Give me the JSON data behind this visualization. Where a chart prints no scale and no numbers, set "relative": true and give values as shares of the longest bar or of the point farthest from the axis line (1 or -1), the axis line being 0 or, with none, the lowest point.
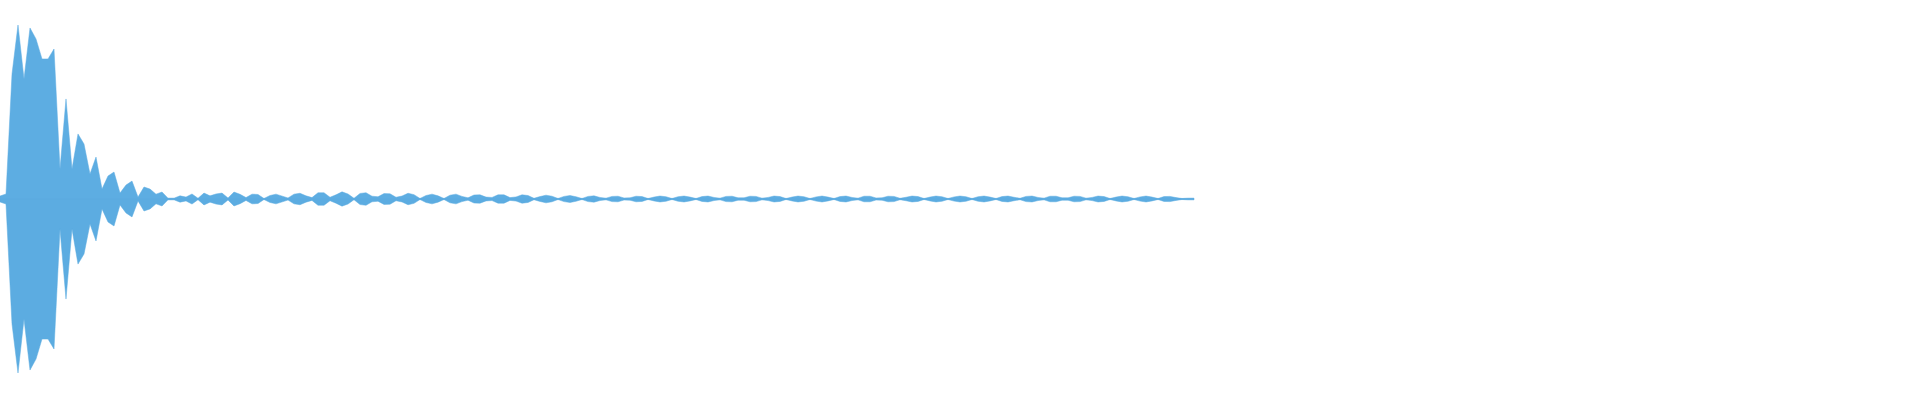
{
  "chart_data": {
    "type": "area",
    "relative": true,
    "categories": [
      null,
      null,
      null,
      null,
      null,
      null,
      null,
      null,
      null,
      null,
      null,
      null,
      null,
      null,
      null,
      null,
      null,
      null,
      null,
      null,
      null,
      null,
      null,
      null,
      null,
      null,
      null,
      null,
      null,
      null,
      null,
      null,
      null,
      null,
      null,
      null,
      null,
      null,
      null,
      null,
      null,
      null,
      null,
      null,
      null,
      null,
      null,
      null,
      null,
      null,
      null,
      null,
      null,
      null,
      null,
      null,
      null,
      null,
      null,
      null,
      null,
      null,
      null,
      null,
      null,
      null,
      null,
      null,
      null,
      null,
      null,
      null,
      null,
      null,
      null,
      null,
      null,
      null,
      null,
      null,
      null,
      null,
      null,
      null,
      null,
      null,
      null,
      null,
      null,
      null,
      null,
      null,
      null,
      null,
      null,
      null,
      null,
      null,
      null,
      null,
      null,
      null,
      null,
      null,
      null,
      null,
      null,
      null,
      null,
      null,
      null,
      null,
      null,
      null,
      null,
      null,
      null,
      null,
      null,
      null,
      null,
      null,
      null,
      null,
      null,
      null,
      null,
      null,
      null,
      null,
      null,
      null,
      null,
      null,
      null,
      null,
      null,
      null,
      null,
      null,
      null,
      null,
      null,
      null,
      null,
      null,
      null,
      null,
      null,
      null,
      null,
      null,
      null,
      null,
      null,
      null,
      null,
      null,
      null,
      null,
      null,
      null,
      null,
      null,
      null,
      null,
      null,
      null,
      null,
      null,
      null,
      null,
      null,
      null,
      null,
      null,
      null,
      null,
      null,
      null,
      null,
      null,
      null,
      null,
      null,
      null,
      null,
      null,
      null,
      null,
      null,
      null,
      null,
      null,
      null,
      null,
      null,
      null,
      null,
      null
    ],
    "series": [
      {
        "color": "#5dade2",
        "values": [
          0.017,
          0.029,
          0.718,
          1,
          0.69,
          0.983,
          0.92,
          0.805,
          0.805,
          0.862,
          0.172,
          0.575,
          0.172,
          0.374,
          0.316,
          0.144,
          0.241,
          0.057,
          0.132,
          0.155,
          0.034,
          0.08,
          0.103,
          0.011,
          0.069,
          0.057,
          0.028,
          0.04,
          0.005,
          0.005,
          0.018,
          0.011,
          0.029,
          0.004,
          0.034,
          0.018,
          0.029,
          0.034,
          0.006,
          0.04,
          0.027,
          0.008,
          0.028,
          0.026,
          0.003,
          0.02,
          0.028,
          0.017,
          0.006,
          0.028,
          0.033,
          0.018,
          0.008,
          0.036,
          0.036,
          0.01,
          0.024,
          0.041,
          0.029,
          0.004,
          0.032,
          0.036,
          0.016,
          0.013,
          0.031,
          0.03,
          0.01,
          0.017,
          0.033,
          0.025,
          0.003,
          0.02,
          0.028,
          0.018,
          0.003,
          0.022,
          0.028,
          0.015,
          0.007,
          0.023,
          0.024,
          0.011,
          0.009,
          0.024,
          0.024,
          0.008,
          0.012,
          0.024,
          0.02,
          0.004,
          0.014,
          0.022,
          0.016,
          0.003,
          0.015,
          0.02,
          0.013,
          0.003,
          0.015,
          0.018,
          0.009,
          0.005,
          0.015,
          0.016,
          0.006,
          0.007,
          0.016,
          0.014,
          0.003,
          0.011,
          0.017,
          0.013,
          0.003,
          0.013,
          0.017,
          0.011,
          0.003,
          0.014,
          0.017,
          0.009,
          0.005,
          0.015,
          0.016,
          0.007,
          0.007,
          0.016,
          0.015,
          0.005,
          0.009,
          0.017,
          0.014,
          0.003,
          0.011,
          0.017,
          0.013,
          0.003,
          0.012,
          0.017,
          0.011,
          0.003,
          0.014,
          0.017,
          0.009,
          0.005,
          0.016,
          0.016,
          0.006,
          0.007,
          0.016,
          0.015,
          0.004,
          0.01,
          0.017,
          0.014,
          0.003,
          0.011,
          0.017,
          0.013,
          0.003,
          0.012,
          0.017,
          0.013,
          0.003,
          0.013,
          0.017,
          0.011,
          0.003,
          0.014,
          0.017,
          0.01,
          0.004,
          0.015,
          0.017,
          0.009,
          0.005,
          0.016,
          0.016,
          0.007,
          0.007,
          0.016,
          0.015,
          0.005,
          0.009,
          0.017,
          0.014,
          0.003,
          0.011,
          0.017,
          0.013,
          0.003,
          0.012,
          0.017,
          0.011,
          0.003,
          0.014,
          0.015,
          0.008,
          0.003,
          0.005,
          0.005
        ]
      },
      {
        "color": "#5cace1",
        "values": [
          -0.017,
          -0.029,
          -0.718,
          -1,
          -0.69,
          -0.983,
          -0.92,
          -0.805,
          -0.805,
          -0.862,
          -0.172,
          -0.575,
          -0.172,
          -0.374,
          -0.316,
          -0.144,
          -0.241,
          -0.057,
          -0.132,
          -0.155,
          -0.034,
          -0.08,
          -0.103,
          -0.011,
          -0.069,
          -0.057,
          -0.028,
          -0.04,
          -0.005,
          -0.005,
          -0.018,
          -0.011,
          -0.029,
          -0.004,
          -0.034,
          -0.018,
          -0.029,
          -0.034,
          -0.006,
          -0.04,
          -0.027,
          -0.008,
          -0.028,
          -0.026,
          -0.003,
          -0.02,
          -0.028,
          -0.017,
          -0.006,
          -0.028,
          -0.033,
          -0.018,
          -0.008,
          -0.036,
          -0.036,
          -0.01,
          -0.024,
          -0.041,
          -0.029,
          -0.004,
          -0.032,
          -0.036,
          -0.016,
          -0.013,
          -0.031,
          -0.03,
          -0.01,
          -0.017,
          -0.033,
          -0.025,
          -0.003,
          -0.02,
          -0.028,
          -0.018,
          -0.003,
          -0.022,
          -0.028,
          -0.015,
          -0.007,
          -0.023,
          -0.024,
          -0.011,
          -0.009,
          -0.024,
          -0.024,
          -0.008,
          -0.012,
          -0.024,
          -0.02,
          -0.004,
          -0.014,
          -0.022,
          -0.016,
          -0.003,
          -0.015,
          -0.02,
          -0.013,
          -0.003,
          -0.015,
          -0.018,
          -0.009,
          -0.005,
          -0.015,
          -0.016,
          -0.006,
          -0.007,
          -0.016,
          -0.014,
          -0.003,
          -0.011,
          -0.017,
          -0.013,
          -0.003,
          -0.013,
          -0.017,
          -0.011,
          -0.003,
          -0.014,
          -0.017,
          -0.009,
          -0.005,
          -0.015,
          -0.016,
          -0.007,
          -0.007,
          -0.016,
          -0.015,
          -0.005,
          -0.009,
          -0.017,
          -0.014,
          -0.003,
          -0.011,
          -0.017,
          -0.013,
          -0.003,
          -0.012,
          -0.017,
          -0.011,
          -0.003,
          -0.014,
          -0.017,
          -0.009,
          -0.005,
          -0.016,
          -0.016,
          -0.006,
          -0.007,
          -0.016,
          -0.015,
          -0.004,
          -0.01,
          -0.017,
          -0.014,
          -0.003,
          -0.011,
          -0.017,
          -0.013,
          -0.003,
          -0.012,
          -0.017,
          -0.013,
          -0.003,
          -0.013,
          -0.017,
          -0.011,
          -0.003,
          -0.014,
          -0.017,
          -0.01,
          -0.004,
          -0.015,
          -0.017,
          -0.009,
          -0.005,
          -0.016,
          -0.016,
          -0.007,
          -0.007,
          -0.016,
          -0.015,
          -0.005,
          -0.009,
          -0.017,
          -0.014,
          -0.003,
          -0.011,
          -0.017,
          -0.013,
          -0.003,
          -0.012,
          -0.017,
          -0.011,
          -0.003,
          -0.014,
          -0.015,
          -0.008,
          -0.003,
          -0.005,
          -0.005
        ]
      }
    ]
  }
}
